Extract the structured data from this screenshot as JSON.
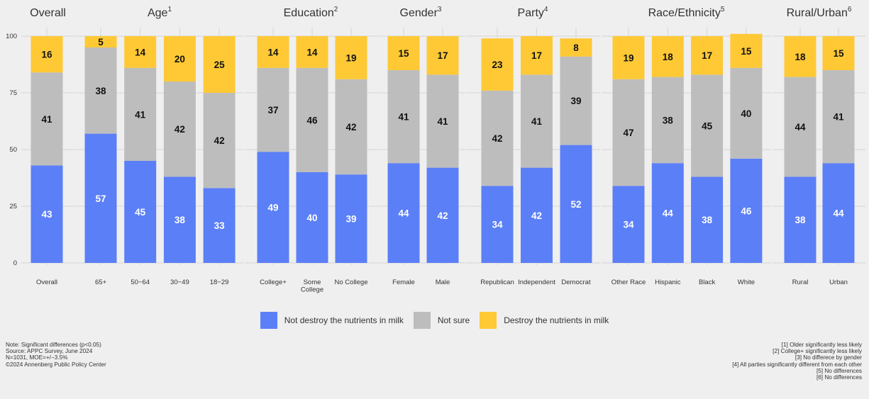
{
  "chart_data": {
    "type": "bar",
    "stacked": true,
    "y_axis": {
      "ylim": [
        0,
        100
      ],
      "ticks": [
        "0",
        "25",
        "50",
        "75",
        "100"
      ]
    },
    "series_names": [
      "Not destroy the nutrients in milk",
      "Not sure",
      "Destroy the nutrients in milk"
    ],
    "colors": [
      "#5b7ff7",
      "#bdbdbd",
      "#fec935"
    ],
    "panels": [
      {
        "title": "Overall",
        "sup": "",
        "categories": [
          {
            "label": [
              "Overall"
            ],
            "values": [
              43,
              41,
              16
            ]
          }
        ]
      },
      {
        "title": "Age",
        "sup": "1",
        "categories": [
          {
            "label": [
              "65+"
            ],
            "values": [
              57,
              38,
              5
            ]
          },
          {
            "label": [
              "50−64"
            ],
            "values": [
              45,
              41,
              14
            ]
          },
          {
            "label": [
              "30−49"
            ],
            "values": [
              38,
              42,
              20
            ]
          },
          {
            "label": [
              "18−29"
            ],
            "values": [
              33,
              42,
              25
            ]
          }
        ]
      },
      {
        "title": "Education",
        "sup": "2",
        "categories": [
          {
            "label": [
              "College+"
            ],
            "values": [
              49,
              37,
              14
            ]
          },
          {
            "label": [
              "Some",
              "College"
            ],
            "values": [
              40,
              46,
              14
            ]
          },
          {
            "label": [
              "No College"
            ],
            "values": [
              39,
              42,
              19
            ]
          }
        ]
      },
      {
        "title": "Gender",
        "sup": "3",
        "categories": [
          {
            "label": [
              "Female"
            ],
            "values": [
              44,
              41,
              15
            ]
          },
          {
            "label": [
              "Male"
            ],
            "values": [
              42,
              41,
              17
            ]
          }
        ]
      },
      {
        "title": "Party",
        "sup": "4",
        "categories": [
          {
            "label": [
              "Republican"
            ],
            "values": [
              34,
              42,
              23
            ]
          },
          {
            "label": [
              "Independent"
            ],
            "values": [
              42,
              41,
              17
            ]
          },
          {
            "label": [
              "Democrat"
            ],
            "values": [
              52,
              39,
              8
            ]
          }
        ]
      },
      {
        "title": "Race/Ethnicity",
        "sup": "5",
        "categories": [
          {
            "label": [
              "Other Race"
            ],
            "values": [
              34,
              47,
              19
            ]
          },
          {
            "label": [
              "Hispanic"
            ],
            "values": [
              44,
              38,
              18
            ]
          },
          {
            "label": [
              "Black"
            ],
            "values": [
              38,
              45,
              17
            ]
          },
          {
            "label": [
              "White"
            ],
            "values": [
              46,
              40,
              15
            ]
          }
        ]
      },
      {
        "title": "Rural/Urban",
        "sup": "6",
        "categories": [
          {
            "label": [
              "Rural"
            ],
            "values": [
              38,
              44,
              18
            ]
          },
          {
            "label": [
              "Urban"
            ],
            "values": [
              44,
              41,
              15
            ]
          }
        ]
      }
    ]
  },
  "legend": {
    "items": [
      "Not destroy the nutrients in milk",
      "Not sure",
      "Destroy the nutrients in milk"
    ],
    "colors": [
      "#5b7ff7",
      "#bdbdbd",
      "#fec935"
    ]
  },
  "notes_left": [
    "Note: Significant differences (p<0.05)",
    "Source: APPC Survey, June 2024",
    "N=1031, MOE=+/−3.5%",
    "©2024 Annenberg Public Policy Center"
  ],
  "notes_right": [
    "[1] Older significantly less likely",
    "[2] College+ significantly less likely",
    "[3] No differece by gender",
    "[4] All parties significantly different from each other",
    "[5] No differences",
    "[6] No differences"
  ]
}
